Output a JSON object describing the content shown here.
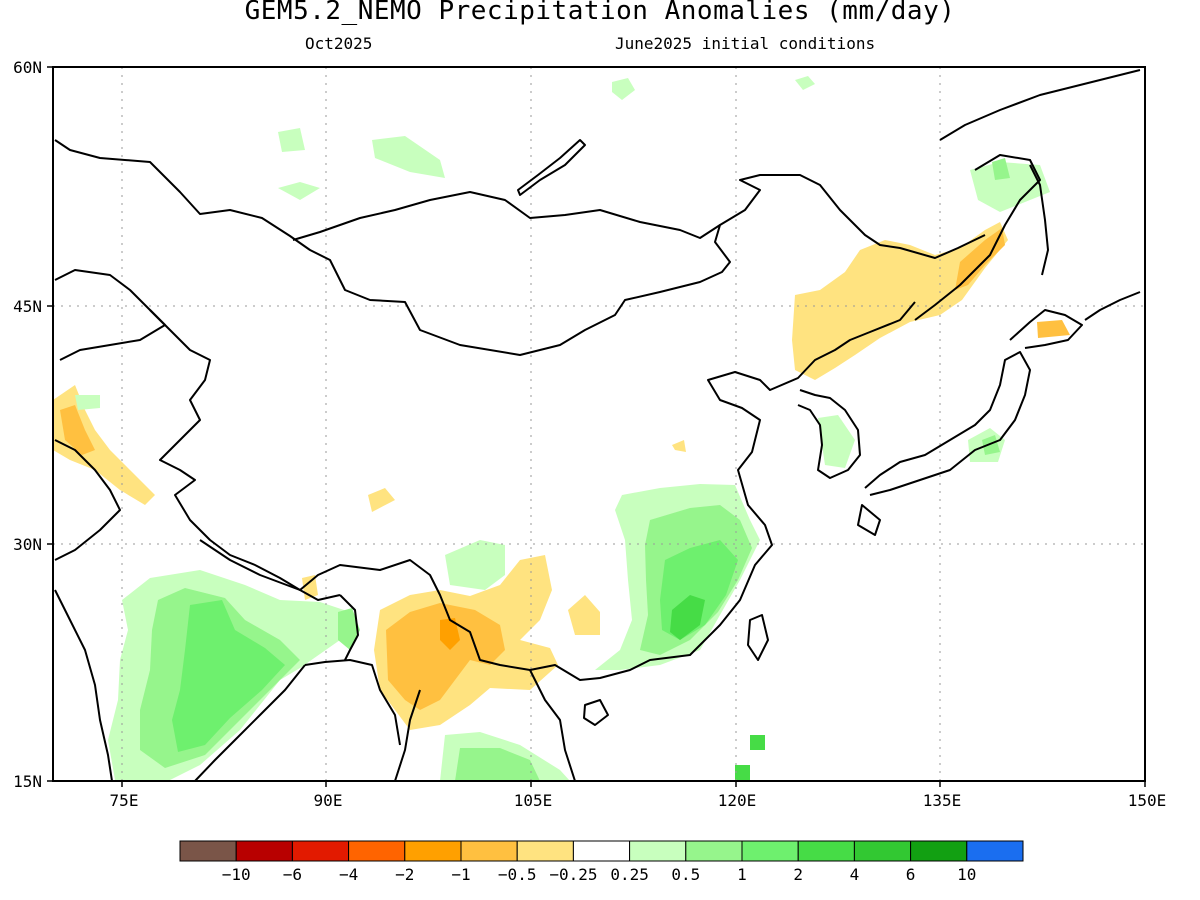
{
  "title": "GEM5.2_NEMO Precipitation Anomalies (mm/day)",
  "subtitle_left": "Oct2025",
  "subtitle_right": "June2025 initial conditions",
  "map": {
    "lon_range": [
      70,
      150
    ],
    "lat_range": [
      15,
      60
    ],
    "lat_ticks": [
      "15N",
      "30N",
      "45N",
      "60N"
    ],
    "lon_ticks": [
      "75E",
      "90E",
      "105E",
      "120E",
      "135E",
      "150E"
    ],
    "grid": true
  },
  "colorbar": {
    "colors": [
      "#7a5548",
      "#b80000",
      "#e21a00",
      "#ff6400",
      "#ffa000",
      "#ffc040",
      "#ffe380",
      "#ffffff",
      "#c8ffbe",
      "#96f58c",
      "#6ef06e",
      "#46dc46",
      "#32c832",
      "#12a012",
      "#1a6ef0"
    ],
    "labels": [
      "-10",
      "-6",
      "-4",
      "-2",
      "-1",
      "-0.5",
      "-0.25",
      "0.25",
      "0.5",
      "1",
      "2",
      "4",
      "6",
      "10"
    ]
  }
}
